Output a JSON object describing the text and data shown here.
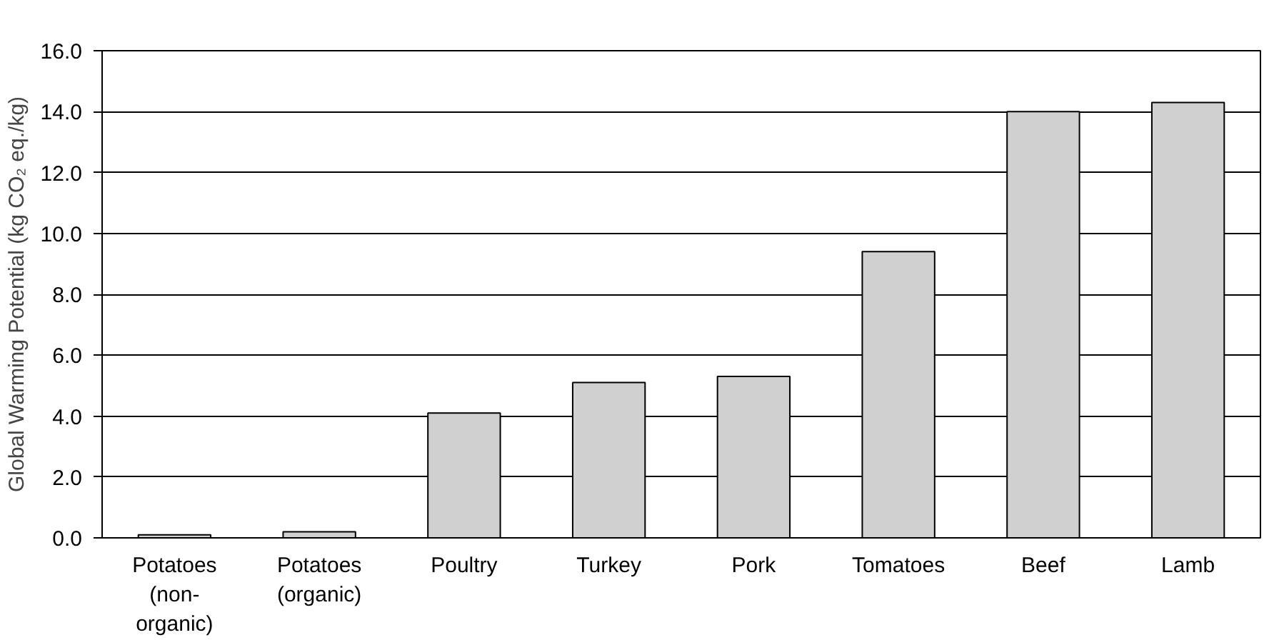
{
  "chart_data": {
    "type": "bar",
    "ylabel": "Global Warming Potential (kg CO₂ eq./kg)",
    "categories": [
      "Potatoes (non-organic)",
      "Potatoes (organic)",
      "Poultry",
      "Turkey",
      "Pork",
      "Tomatoes",
      "Beef",
      "Lamb"
    ],
    "values": [
      0.1,
      0.2,
      4.1,
      5.1,
      5.3,
      9.4,
      14.0,
      14.3
    ],
    "color": "#d0d0d0",
    "ylim": [
      0,
      16
    ],
    "yticks": [
      {
        "value": 0,
        "label": "0.0"
      },
      {
        "value": 2,
        "label": "2.0"
      },
      {
        "value": 4,
        "label": "4.0"
      },
      {
        "value": 6,
        "label": "6.0"
      },
      {
        "value": 8,
        "label": "8.0"
      },
      {
        "value": 10,
        "label": "10.0"
      },
      {
        "value": 12,
        "label": "12.0"
      },
      {
        "value": 14,
        "label": "14.0"
      },
      {
        "value": 16,
        "label": "16.0"
      }
    ],
    "grid": "y"
  }
}
